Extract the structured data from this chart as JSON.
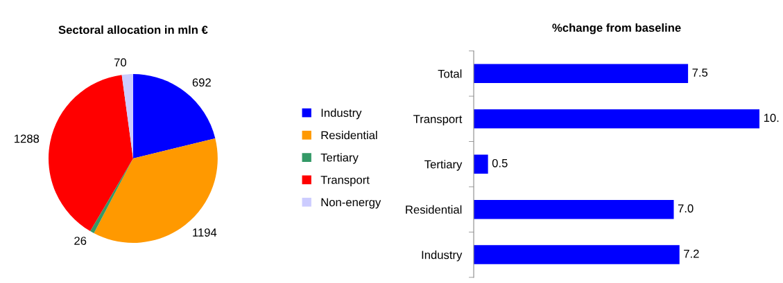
{
  "chart_data": [
    {
      "type": "pie",
      "title": "Sectoral allocation in mln €",
      "categories": [
        "Industry",
        "Residential",
        "Tertiary",
        "Transport",
        "Non-energy"
      ],
      "values": [
        692,
        1194,
        26,
        1288,
        70
      ],
      "colors": [
        "#0000ff",
        "#ff9900",
        "#339966",
        "#ff0000",
        "#ccccff"
      ],
      "data_labels": true,
      "legend": "right"
    },
    {
      "type": "bar",
      "orientation": "horizontal",
      "title": "%change from baseline",
      "categories": [
        "Total",
        "Transport",
        "Tertiary",
        "Residential",
        "Industry"
      ],
      "values": [
        7.5,
        10.0,
        0.5,
        7.0,
        7.2
      ],
      "color": "#0000ff",
      "value_labels": [
        "7.5",
        "10.",
        "0.5",
        "7.0",
        "7.2"
      ],
      "grid": false
    }
  ]
}
